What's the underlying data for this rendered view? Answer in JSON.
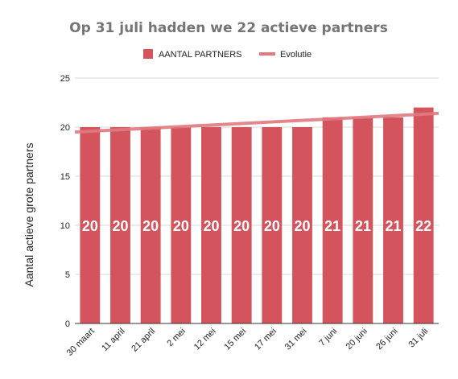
{
  "chart_data": {
    "type": "bar",
    "title": "Op 31 juli hadden we 22 actieve partners",
    "xlabel": "",
    "ylabel": "Aantal actieve grote partners",
    "categories": [
      "30 maart",
      "11 april",
      "21 april",
      "2 mei",
      "12 mei",
      "15 mei",
      "17 mei",
      "31 mei",
      "7 juni",
      "20 juni",
      "26 juni",
      "31 juli"
    ],
    "series": [
      {
        "name": "AANTAL PARTNERS",
        "type": "bar",
        "color": "#d4545d",
        "values": [
          20,
          20,
          20,
          20,
          20,
          20,
          20,
          20,
          21,
          21,
          21,
          22
        ],
        "data_labels": [
          "20",
          "20",
          "20",
          "20",
          "20",
          "20",
          "20",
          "20",
          "21",
          "21",
          "21",
          "22"
        ]
      },
      {
        "name": "Evolutie",
        "type": "trendline",
        "color": "#e07a80",
        "start_value": 19.5,
        "end_value": 21.4
      }
    ],
    "ylim": [
      0,
      25
    ],
    "yticks": [
      "0",
      "5",
      "10",
      "15",
      "20",
      "25"
    ],
    "grid": true,
    "legend": "top-center"
  }
}
